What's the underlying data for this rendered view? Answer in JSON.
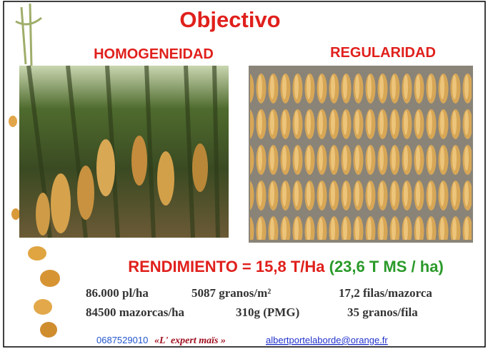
{
  "title": "Objectivo",
  "left": {
    "label": "HOMOGENEIDAD"
  },
  "right": {
    "label": "REGULARIDAD"
  },
  "yield": {
    "main": "RENDIMIENTO = 15,8 T/Ha",
    "dry": "(23,6 T MS / ha)"
  },
  "stats": {
    "rows": [
      [
        "86.000 pl/ha",
        "5087 granos/m²",
        "17,2 filas/mazorca"
      ],
      [
        "84500 mazorcas/ha",
        "310g (PMG)",
        "35 granos/fila"
      ]
    ]
  },
  "footer": {
    "phone": "0687529010",
    "brand": "«L' expert maïs »",
    "email": "albertportelaborde@orange.fr"
  }
}
